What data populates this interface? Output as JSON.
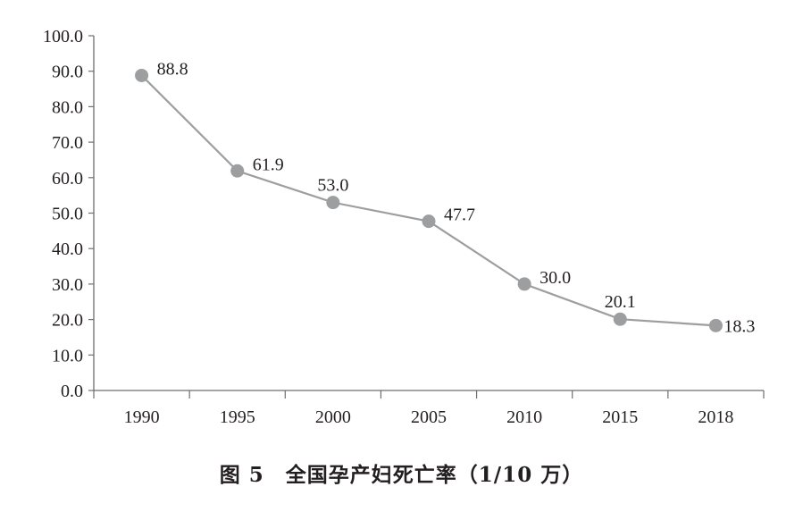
{
  "chart_data": {
    "type": "line",
    "title": "",
    "xlabel": "",
    "ylabel": "",
    "categories": [
      "1990",
      "1995",
      "2000",
      "2005",
      "2010",
      "2015",
      "2018"
    ],
    "series": [
      {
        "values": [
          88.8,
          61.9,
          53.0,
          47.7,
          30.0,
          20.1,
          18.3
        ],
        "color": "#9d9e9f"
      }
    ],
    "data_labels": [
      "88.8",
      "61.9",
      "53.0",
      "47.7",
      "30.0",
      "20.1",
      "18.3"
    ],
    "ylim": [
      0,
      100
    ],
    "yticks": [
      "0.0",
      "10.0",
      "20.0",
      "30.0",
      "40.0",
      "50.0",
      "60.0",
      "70.0",
      "80.0",
      "90.0",
      "100.0"
    ],
    "grid": false,
    "legend": "none"
  },
  "caption": {
    "figure_number": "图 5",
    "text": "全国孕产妇死亡率（1/10 万）"
  }
}
